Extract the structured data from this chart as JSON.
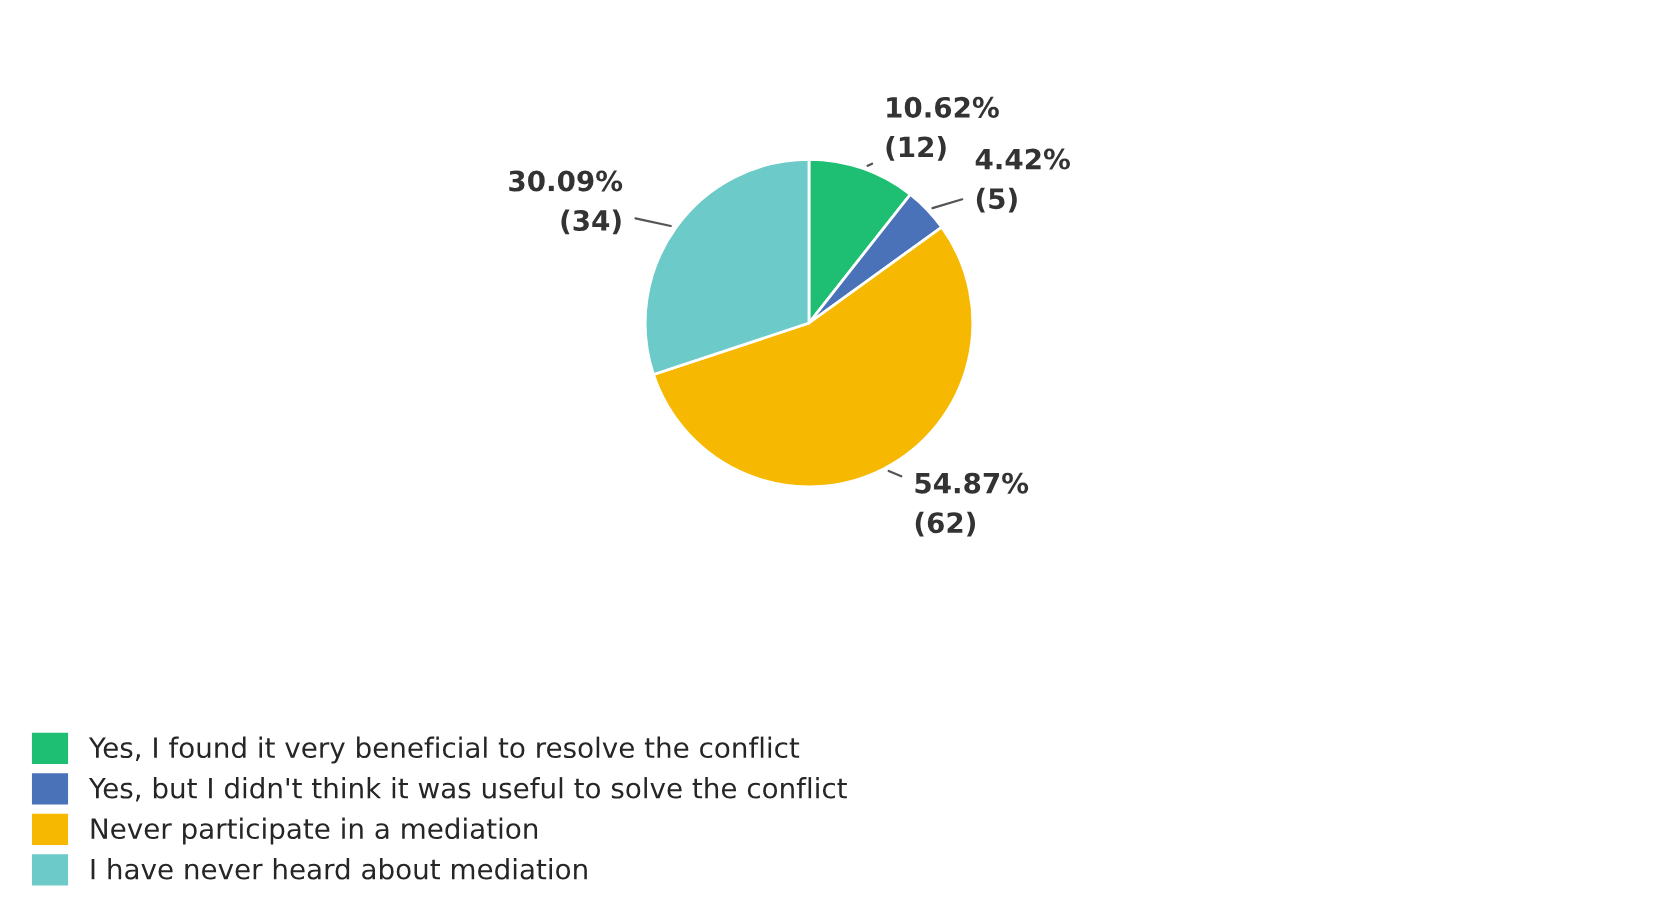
{
  "chart_data": {
    "type": "pie",
    "categories": [
      "Yes, I found it very beneficial to resolve the conflict",
      "Yes, but I didn't think it was useful to solve the conflict",
      "Never participate in a mediation",
      "I have never heard about mediation"
    ],
    "values": [
      12,
      5,
      62,
      34
    ],
    "value_labels": [
      "10.62%\n(12)",
      "4.42%\n(5)",
      "54.87%\n(62)",
      "30.09%\n(34)"
    ],
    "colors": [
      "#1fbf73",
      "#4a72b8",
      "#f6b800",
      "#6ccac9"
    ],
    "legend": "bottom left"
  }
}
